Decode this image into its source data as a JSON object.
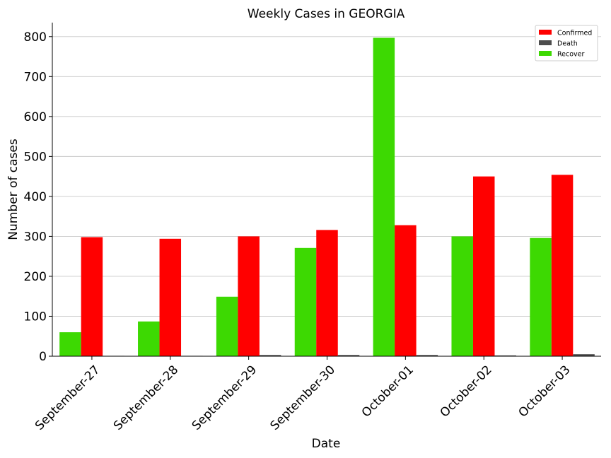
{
  "chart_data": {
    "type": "bar",
    "title": "Weekly Cases in GEORGIA",
    "xlabel": "Date",
    "ylabel": "Number of cases",
    "categories": [
      "September-27",
      "September-28",
      "September-29",
      "September-30",
      "October-01",
      "October-02",
      "October-03"
    ],
    "series": [
      {
        "name": "Recover",
        "color": "#3dd902",
        "values": [
          60,
          87,
          149,
          271,
          797,
          300,
          296
        ]
      },
      {
        "name": "Confirmed",
        "color": "#ff0000",
        "values": [
          298,
          294,
          300,
          316,
          328,
          450,
          454
        ]
      },
      {
        "name": "Death",
        "color": "#4d4d4d",
        "values": [
          1,
          1,
          3,
          3,
          3,
          2,
          5
        ]
      }
    ],
    "legend_order": [
      "Confirmed",
      "Death",
      "Recover"
    ],
    "ylim": [
      0,
      835
    ],
    "yticks": [
      0,
      100,
      200,
      300,
      400,
      500,
      600,
      700,
      800
    ],
    "grid": "horizontal",
    "legend_position": "top-right"
  }
}
